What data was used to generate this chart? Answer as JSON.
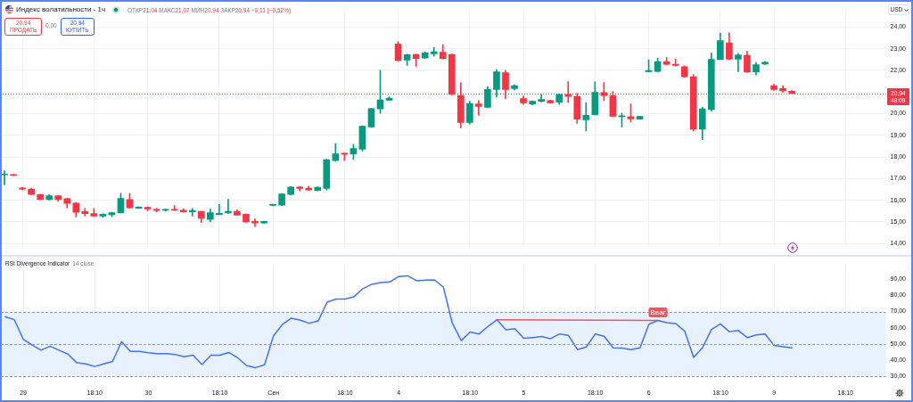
{
  "chart_data": [
    {
      "type": "candlestick",
      "title": "Индекс волатильности - 1ч",
      "annotations": [
        "ОТКР21,04 МАКС21,07 МИН20,94 ЗАКР20,94 −0,11 (−0,52%)",
        "20,94\nПРОДАТЬ",
        "0,00",
        "20,94\nКУПИТЬ"
      ],
      "ylabel": "USD",
      "categories": [
        null,
        null,
        null,
        null,
        null,
        null,
        null,
        null,
        null,
        null,
        null,
        null,
        null,
        null,
        null,
        null,
        null,
        null,
        null,
        null,
        null,
        null,
        null,
        null,
        null,
        null,
        null,
        null,
        null,
        null,
        null,
        null,
        null,
        null,
        null,
        null,
        null,
        null,
        null,
        null,
        null,
        null,
        null,
        null,
        null,
        null,
        null,
        null,
        null,
        null,
        null,
        null,
        null,
        null,
        null,
        null,
        null,
        null,
        null,
        null,
        null,
        null,
        null,
        null,
        null,
        null,
        null,
        null,
        null,
        null,
        null,
        null,
        null,
        null,
        null,
        null,
        null,
        null,
        null,
        null,
        null,
        null,
        null,
        null,
        null,
        null,
        null,
        null,
        null,
        null,
        null,
        null,
        null,
        null,
        null,
        null,
        null,
        null,
        null
      ],
      "ohlc": [
        [
          17.17,
          17.36,
          16.71,
          17.21
        ],
        [
          17.19,
          17.2,
          17.14,
          17.15
        ],
        [
          16.57,
          16.6,
          16.48,
          16.51
        ],
        [
          16.52,
          16.56,
          16.25,
          16.26
        ],
        [
          16.26,
          16.28,
          16.02,
          16.03
        ],
        [
          16.03,
          16.26,
          16.01,
          16.21
        ],
        [
          16.21,
          16.23,
          15.95,
          16.03
        ],
        [
          16.07,
          16.09,
          15.65,
          15.85
        ],
        [
          15.87,
          15.9,
          15.23,
          15.44
        ],
        [
          15.48,
          15.62,
          15.27,
          15.38
        ],
        [
          15.38,
          15.62,
          15.25,
          15.27
        ],
        [
          15.27,
          15.37,
          15.2,
          15.35
        ],
        [
          15.33,
          15.45,
          15.24,
          15.42
        ],
        [
          15.42,
          16.32,
          15.4,
          16.08
        ],
        [
          16.03,
          16.32,
          15.62,
          15.65
        ],
        [
          15.63,
          15.7,
          15.62,
          15.68
        ],
        [
          15.67,
          15.69,
          15.5,
          15.6
        ],
        [
          15.58,
          15.63,
          15.45,
          15.52
        ],
        [
          15.53,
          15.6,
          15.5,
          15.58
        ],
        [
          15.58,
          15.75,
          15.52,
          15.53
        ],
        [
          15.54,
          15.6,
          15.44,
          15.46
        ],
        [
          15.46,
          15.62,
          15.27,
          15.53
        ],
        [
          15.49,
          15.5,
          14.97,
          15.16
        ],
        [
          15.11,
          15.59,
          15.01,
          15.42
        ],
        [
          15.34,
          15.81,
          15.33,
          15.39
        ],
        [
          15.41,
          16.04,
          15.38,
          15.49
        ],
        [
          15.49,
          15.56,
          15.3,
          15.31
        ],
        [
          15.35,
          15.37,
          14.99,
          15.0
        ],
        [
          15.02,
          15.14,
          14.78,
          14.95
        ],
        [
          14.95,
          15.03,
          14.93,
          15.02
        ],
        [
          15.76,
          15.82,
          15.74,
          15.81
        ],
        [
          15.77,
          16.31,
          15.75,
          16.29
        ],
        [
          16.26,
          16.63,
          16.24,
          16.61
        ],
        [
          16.61,
          16.63,
          16.43,
          16.54
        ],
        [
          16.56,
          16.65,
          16.45,
          16.47
        ],
        [
          16.45,
          16.62,
          16.43,
          16.6
        ],
        [
          16.54,
          17.9,
          16.47,
          17.86
        ],
        [
          17.83,
          18.62,
          17.8,
          18.14
        ],
        [
          18.17,
          18.18,
          17.83,
          18.12
        ],
        [
          18.14,
          18.59,
          17.88,
          18.39
        ],
        [
          18.36,
          19.44,
          18.27,
          19.42
        ],
        [
          19.39,
          20.25,
          19.36,
          20.23
        ],
        [
          20.22,
          22.0,
          20.01,
          20.63
        ],
        [
          20.62,
          20.78,
          20.6,
          20.72
        ],
        [
          23.22,
          23.32,
          22.43,
          22.45
        ],
        [
          22.47,
          22.75,
          22.23,
          22.73
        ],
        [
          22.74,
          22.76,
          22.19,
          22.55
        ],
        [
          22.57,
          22.86,
          22.55,
          22.81
        ],
        [
          22.76,
          23.06,
          22.65,
          22.86
        ],
        [
          22.84,
          23.19,
          22.53,
          22.55
        ],
        [
          22.74,
          22.76,
          20.87,
          20.89
        ],
        [
          20.84,
          21.43,
          19.34,
          19.59
        ],
        [
          19.59,
          20.57,
          19.52,
          20.47
        ],
        [
          20.45,
          20.6,
          19.92,
          20.33
        ],
        [
          20.29,
          21.24,
          20.27,
          21.12
        ],
        [
          21.12,
          22.04,
          20.76,
          21.93
        ],
        [
          21.89,
          21.99,
          20.69,
          21.12
        ],
        [
          21.16,
          21.33,
          21.09,
          21.29
        ],
        [
          20.7,
          20.82,
          20.43,
          20.5
        ],
        [
          20.45,
          20.59,
          20.4,
          20.57
        ],
        [
          20.57,
          20.89,
          20.54,
          20.66
        ],
        [
          20.6,
          20.63,
          20.48,
          20.5
        ],
        [
          20.53,
          20.92,
          20.43,
          20.89
        ],
        [
          20.89,
          21.48,
          20.51,
          20.8
        ],
        [
          20.8,
          20.93,
          19.55,
          19.75
        ],
        [
          19.71,
          20.51,
          19.2,
          19.92
        ],
        [
          19.95,
          21.47,
          19.93,
          20.99
        ],
        [
          20.97,
          21.44,
          20.6,
          20.84
        ],
        [
          20.84,
          21.03,
          19.86,
          19.88
        ],
        [
          19.86,
          20.03,
          19.38,
          19.9
        ],
        [
          19.86,
          20.45,
          19.61,
          19.76
        ],
        [
          19.75,
          19.88,
          19.74,
          19.87
        ],
        [
          21.94,
          22.49,
          21.93,
          21.99
        ],
        [
          21.95,
          22.57,
          21.93,
          22.41
        ],
        [
          22.41,
          22.59,
          22.26,
          22.28
        ],
        [
          22.28,
          22.52,
          22.2,
          22.23
        ],
        [
          22.17,
          22.21,
          21.68,
          21.7
        ],
        [
          21.71,
          21.81,
          19.2,
          19.28
        ],
        [
          19.28,
          20.31,
          18.8,
          20.22
        ],
        [
          20.19,
          22.8,
          20.12,
          22.51
        ],
        [
          22.51,
          23.72,
          22.49,
          23.37
        ],
        [
          23.27,
          23.73,
          22.5,
          22.52
        ],
        [
          22.52,
          22.79,
          21.94,
          22.72
        ],
        [
          22.69,
          22.88,
          21.91,
          21.93
        ],
        [
          21.93,
          22.38,
          21.78,
          22.26
        ],
        [
          22.29,
          22.42,
          22.27,
          22.37
        ],
        [
          21.29,
          21.36,
          21.07,
          21.12
        ],
        [
          21.16,
          21.29,
          20.98,
          21.05
        ],
        [
          21.04,
          21.07,
          20.94,
          20.94
        ],
        null,
        null,
        null,
        null,
        null,
        null,
        null,
        null,
        null,
        null
      ],
      "colors": [
        "#089981",
        "#f23645",
        "#f23645",
        "#f23645",
        "#f23645",
        "#089981",
        "#f23645",
        "#f23645",
        "#f23645",
        "#f23645",
        "#f23645",
        "#089981",
        "#089981",
        "#089981",
        "#f23645",
        "#089981",
        "#f23645",
        "#f23645",
        "#089981",
        "#f23645",
        "#f23645",
        "#089981",
        "#f23645",
        "#089981",
        "#089981",
        "#089981",
        "#f23645",
        "#f23645",
        "#f23645",
        "#089981",
        "#089981",
        "#089981",
        "#089981",
        "#f23645",
        "#f23645",
        "#089981",
        "#089981",
        "#089981",
        "#f23645",
        "#089981",
        "#089981",
        "#089981",
        "#089981",
        "#089981",
        "#f23645",
        "#089981",
        "#f23645",
        "#089981",
        "#089981",
        "#f23645",
        "#f23645",
        "#f23645",
        "#089981",
        "#f23645",
        "#089981",
        "#089981",
        "#f23645",
        "#089981",
        "#f23645",
        "#089981",
        "#089981",
        "#f23645",
        "#089981",
        "#f23645",
        "#f23645",
        "#089981",
        "#089981",
        "#f23645",
        "#f23645",
        "#089981",
        "#f23645",
        "#089981",
        "#089981",
        "#089981",
        "#f23645",
        "#f23645",
        "#f23645",
        "#f23645",
        "#089981",
        "#089981",
        "#089981",
        "#f23645",
        "#089981",
        "#f23645",
        "#089981",
        "#089981",
        "#f23645",
        "#f23645",
        "#f23645",
        null,
        null,
        null,
        null,
        null,
        null,
        null,
        null,
        null,
        null
      ],
      "ylim": [
        13.85,
        24.79
      ],
      "yticks": [
        {
          "value": 14,
          "label": "14,00"
        },
        {
          "value": 15,
          "label": "15,00"
        },
        {
          "value": 16,
          "label": "16,00"
        },
        {
          "value": 17,
          "label": "17,00"
        },
        {
          "value": 18,
          "label": "18,00"
        },
        {
          "value": 19,
          "label": "19,00"
        },
        {
          "value": 20,
          "label": "20,00"
        },
        {
          "value": 21,
          "label": null
        },
        {
          "value": 22,
          "label": "22,00"
        },
        {
          "value": 23,
          "label": "23,00"
        },
        {
          "value": 24,
          "label": "24,00"
        }
      ],
      "grid": true,
      "tick_labels": "y",
      "ref_lines": [
        {
          "axis": "y",
          "value": 20.94,
          "label": "20,94\n48:09",
          "color": "#f23645",
          "line_style": "dotted"
        }
      ]
    },
    {
      "type": "line",
      "title": "RSI Divergence Indicator",
      "subtitle": "14 close",
      "categories": [
        null,
        null,
        "29",
        null,
        null,
        null,
        null,
        null,
        null,
        null,
        "18:10",
        null,
        null,
        null,
        null,
        null,
        "30",
        null,
        null,
        null,
        null,
        null,
        null,
        null,
        "18:10",
        null,
        null,
        null,
        null,
        null,
        "Сен",
        null,
        null,
        null,
        null,
        null,
        null,
        null,
        "18:10",
        null,
        null,
        null,
        null,
        null,
        "4",
        null,
        null,
        null,
        null,
        null,
        null,
        null,
        "18:10",
        null,
        null,
        null,
        null,
        null,
        "5",
        null,
        null,
        null,
        null,
        null,
        null,
        null,
        "18:10",
        null,
        null,
        null,
        null,
        null,
        "6",
        null,
        null,
        null,
        null,
        null,
        null,
        null,
        "18:10",
        null,
        null,
        null,
        null,
        null,
        "9",
        null,
        null,
        null,
        null,
        null,
        null,
        null,
        "18:10",
        null,
        null,
        null,
        null
      ],
      "series": [
        {
          "color": "#4471f7",
          "values": [
            66.7,
            65.0,
            53.0,
            49.4,
            46.2,
            48.7,
            46.2,
            43.8,
            38.4,
            37.8,
            36.2,
            37.8,
            39.3,
            51.5,
            45.5,
            45.5,
            44.6,
            44.1,
            44.1,
            43.6,
            42.2,
            43.1,
            37.4,
            43.1,
            43.1,
            44.8,
            41.5,
            36.7,
            35.5,
            37.2,
            55.1,
            62.1,
            65.9,
            64.7,
            62.8,
            64.2,
            75.8,
            77.7,
            77.7,
            79.1,
            84.1,
            86.8,
            87.8,
            88.2,
            91.6,
            92.0,
            89.0,
            89.4,
            89.5,
            85.1,
            62.9,
            52.1,
            57.4,
            56.2,
            60.8,
            65.0,
            58.8,
            59.5,
            53.5,
            54.0,
            54.6,
            53.3,
            56.2,
            55.3,
            46.6,
            48.2,
            56.2,
            54.8,
            47.7,
            47.5,
            46.6,
            47.7,
            62.2,
            64.5,
            63.1,
            62.6,
            57.9,
            41.8,
            47.8,
            59.0,
            62.4,
            57.6,
            58.3,
            54.0,
            55.6,
            56.2,
            49.1,
            48.4,
            47.7,
            null,
            null,
            null,
            null,
            null,
            null,
            null,
            null,
            null,
            null
          ]
        },
        {
          "name": "Bear",
          "color": "#f0565d",
          "values": [
            null,
            null,
            null,
            null,
            null,
            null,
            null,
            null,
            null,
            null,
            null,
            null,
            null,
            null,
            null,
            null,
            null,
            null,
            null,
            null,
            null,
            null,
            null,
            null,
            null,
            null,
            null,
            null,
            null,
            null,
            null,
            null,
            null,
            null,
            null,
            null,
            null,
            null,
            null,
            null,
            null,
            null,
            null,
            null,
            null,
            null,
            null,
            null,
            null,
            null,
            null,
            null,
            null,
            null,
            null,
            65.0,
            null,
            null,
            null,
            null,
            null,
            null,
            null,
            null,
            null,
            null,
            null,
            null,
            null,
            null,
            null,
            null,
            null,
            64.5,
            null,
            null,
            null,
            null,
            null,
            null,
            null,
            null,
            null,
            null,
            null,
            null,
            null,
            null,
            null,
            null,
            null,
            null,
            null,
            null,
            null,
            null,
            null,
            null,
            null
          ]
        }
      ],
      "ylim": [
        25.3,
        98.7
      ],
      "yticks": [
        {
          "value": 30,
          "label": "30,00"
        },
        {
          "value": 40,
          "label": "40,00"
        },
        {
          "value": 50,
          "label": "50,00"
        },
        {
          "value": 60,
          "label": "60,00"
        },
        {
          "value": 70,
          "label": "70,00"
        },
        {
          "value": 80,
          "label": "80,00"
        },
        {
          "value": 90,
          "label": "90,00"
        }
      ],
      "grid": "x",
      "bands": [
        {
          "axis": "y",
          "from": 30,
          "to": 70,
          "color": "#e8f2fe"
        }
      ],
      "ref_lines": [
        {
          "axis": "y",
          "value": 70,
          "color": "#9598a1",
          "line_style": "dashed"
        },
        {
          "axis": "y",
          "value": 50,
          "color": "#9598a1",
          "line_style": "dashed"
        },
        {
          "axis": "y",
          "value": 30,
          "color": "#9598a1",
          "line_style": "dashed"
        }
      ]
    }
  ]
}
